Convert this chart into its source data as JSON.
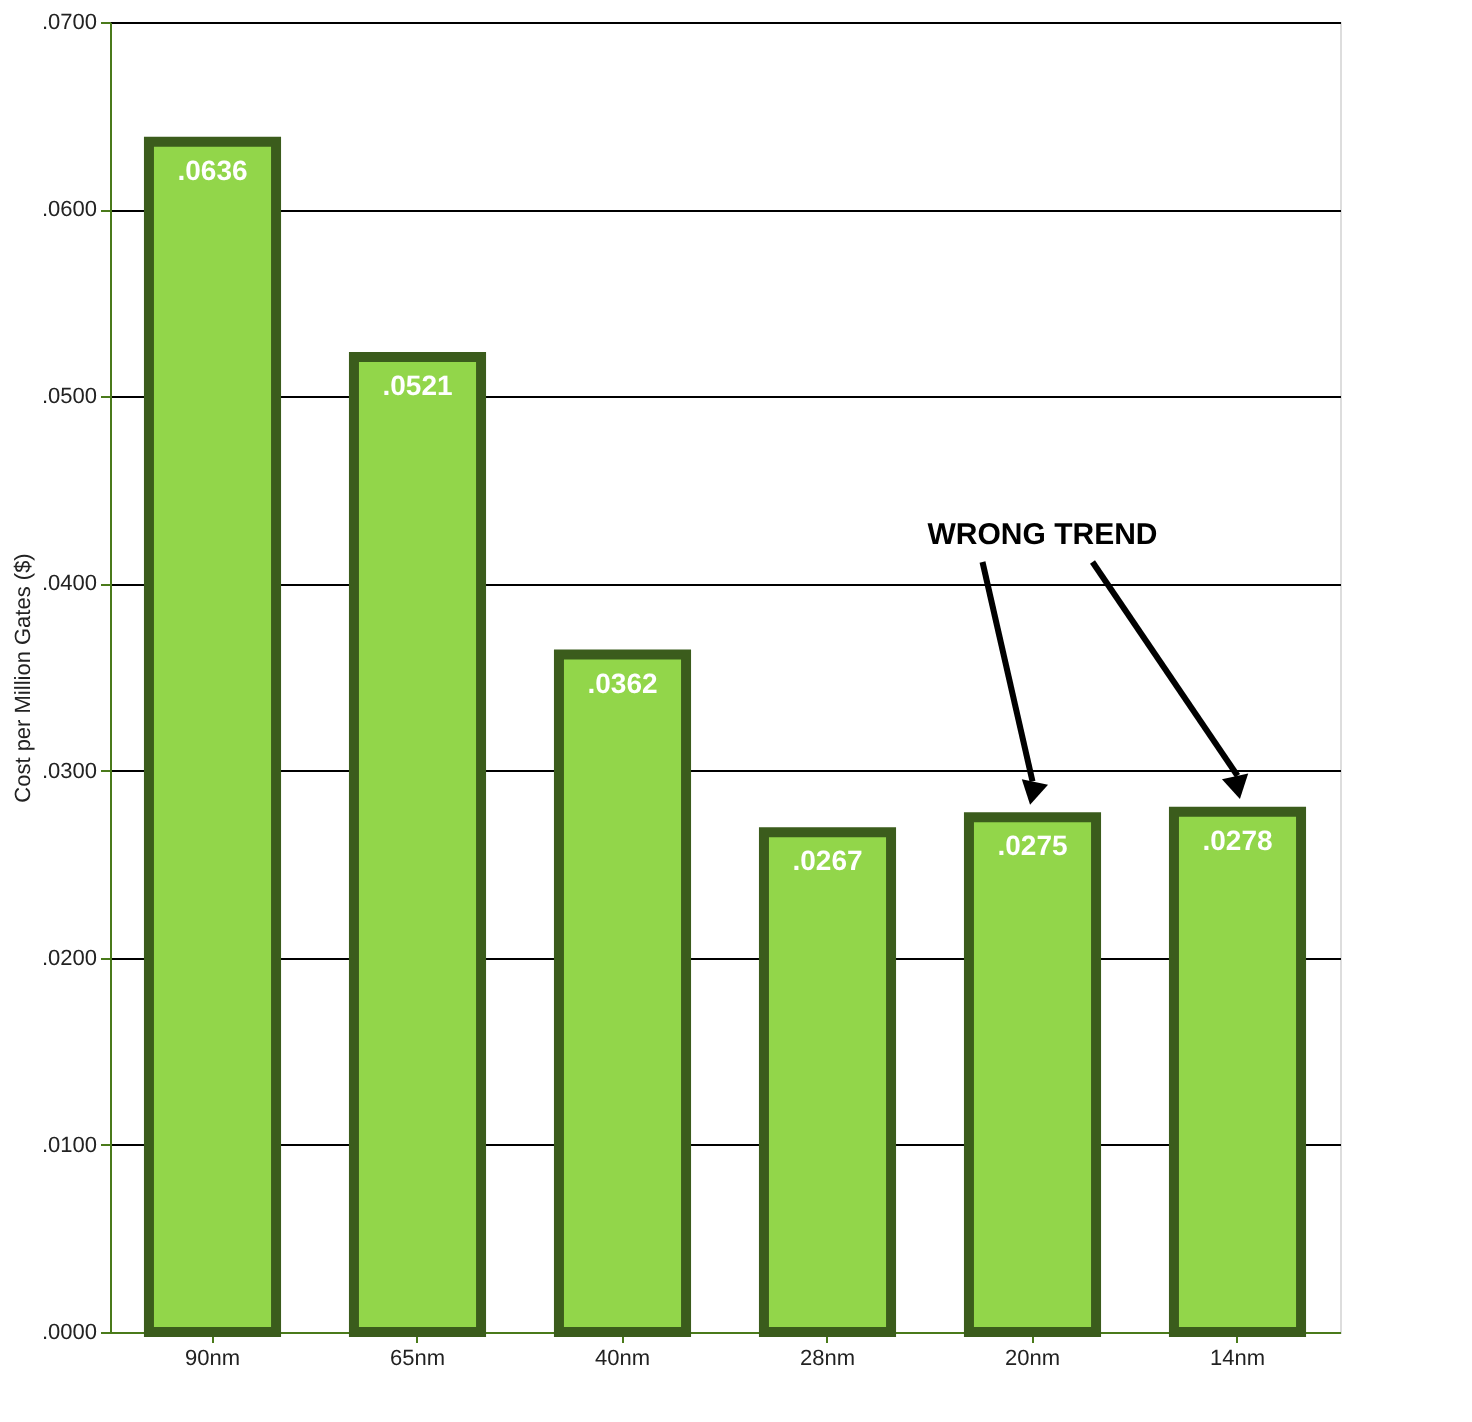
{
  "chart_data": {
    "type": "bar",
    "ylabel": "Cost per Million Gates ($)",
    "categories": [
      "90nm",
      "65nm",
      "40nm",
      "28nm",
      "20nm",
      "14nm"
    ],
    "values": [
      0.0636,
      0.0521,
      0.0362,
      0.0267,
      0.0275,
      0.0278
    ],
    "value_labels": [
      ".0636",
      ".0521",
      ".0362",
      ".0267",
      ".0275",
      ".0278"
    ],
    "color": "#92d64a",
    "ylim": [
      0,
      0.07
    ],
    "yticks": [
      {
        "value": 0,
        "label": ".0000"
      },
      {
        "value": 0.01,
        "label": ".0100"
      },
      {
        "value": 0.02,
        "label": ".0200"
      },
      {
        "value": 0.03,
        "label": ".0300"
      },
      {
        "value": 0.04,
        "label": ".0400"
      },
      {
        "value": 0.05,
        "label": ".0500"
      },
      {
        "value": 0.06,
        "label": ".0600"
      },
      {
        "value": 0.07,
        "label": ".0700"
      }
    ],
    "grid": "y",
    "annotations": [
      "WRONG TREND"
    ]
  }
}
